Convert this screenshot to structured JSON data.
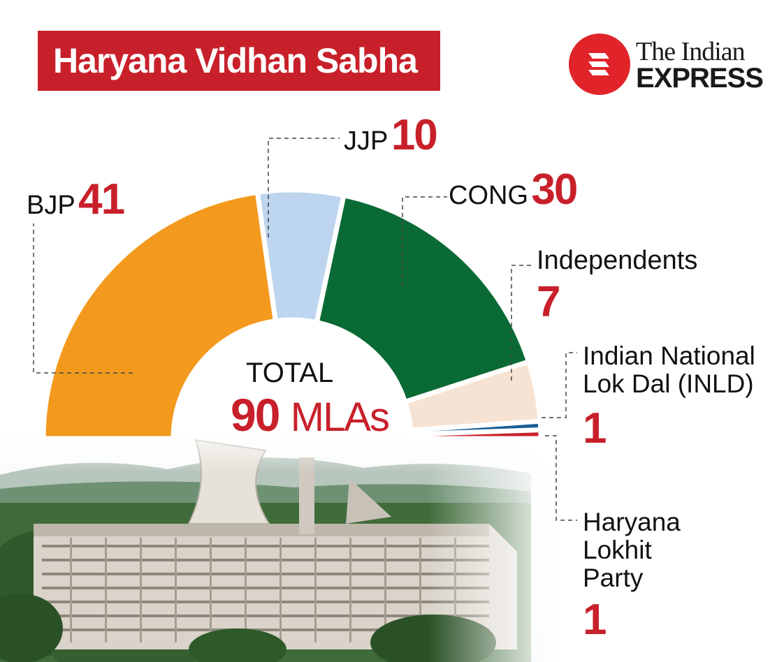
{
  "title": "Haryana Vidhan Sabha",
  "logo": {
    "line1": "The Indian",
    "line2": "EXPRESS"
  },
  "total": {
    "label": "TOTAL",
    "value": "90",
    "unit": "MLAs"
  },
  "chart_data": {
    "type": "pie",
    "title": "Haryana Vidhan Sabha",
    "total": 90,
    "unit": "MLAs",
    "categories": [
      "BJP",
      "JJP",
      "CONG",
      "Independents",
      "Indian National Lok Dal (INLD)",
      "Haryana Lokhit Party"
    ],
    "values": [
      41,
      10,
      30,
      7,
      1,
      1
    ],
    "display_values": [
      "41",
      "10",
      "30",
      "7",
      "1",
      "1"
    ],
    "colors": [
      "#f39a1e",
      "#bdd5ee",
      "#0a6a35",
      "#f7e3d3",
      "#1a5f96",
      "#c8202a"
    ]
  }
}
